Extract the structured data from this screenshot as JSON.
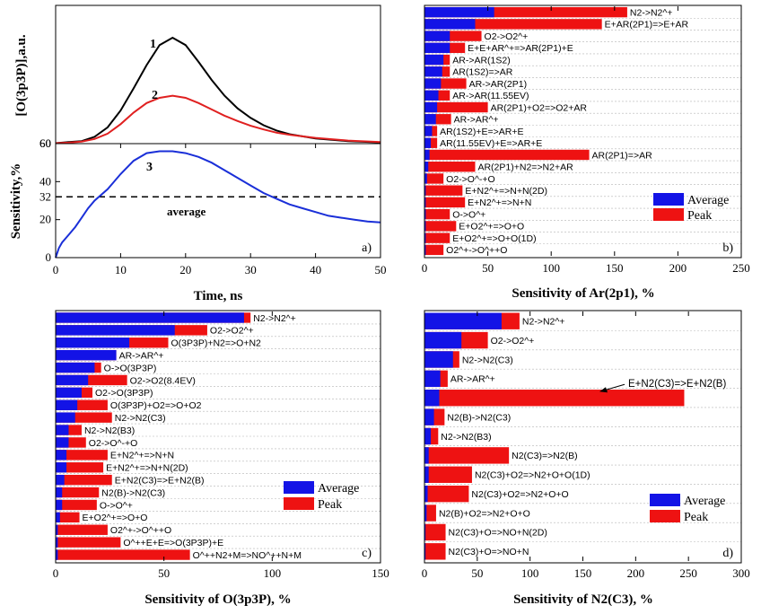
{
  "colors": {
    "average": "#1313e6",
    "peak": "#ee1212",
    "curve1": "#000000",
    "curve2": "#e02020",
    "curve3": "#1a2fd8"
  },
  "legend": {
    "average": "Average",
    "peak": "Peak"
  },
  "chart_data": [
    {
      "id": "a",
      "type": "line",
      "panel_label": "a)",
      "xlabel": "Time, ns",
      "xlim": [
        0,
        50
      ],
      "xticks": [
        "0",
        "10",
        "20",
        "30",
        "40",
        "50"
      ],
      "top": {
        "ylabel": "[O(3p3P)],a.u.",
        "yticks": [
          "60"
        ],
        "series": [
          {
            "name": "1",
            "color_key": "curve1",
            "x": [
              0,
              2,
              4,
              6,
              8,
              10,
              12,
              14,
              16,
              18,
              20,
              22,
              24,
              26,
              28,
              30,
              32,
              34,
              36,
              40,
              45,
              50
            ],
            "y": [
              0.0,
              0.01,
              0.02,
              0.06,
              0.15,
              0.31,
              0.52,
              0.74,
              0.93,
              1.0,
              0.93,
              0.77,
              0.6,
              0.45,
              0.33,
              0.24,
              0.17,
              0.12,
              0.085,
              0.045,
              0.02,
              0.008
            ]
          },
          {
            "name": "2",
            "color_key": "curve2",
            "x": [
              0,
              2,
              4,
              6,
              8,
              10,
              12,
              14,
              16,
              18,
              20,
              22,
              24,
              26,
              28,
              30,
              32,
              34,
              36,
              40,
              45,
              50
            ],
            "y": [
              0.0,
              0.005,
              0.015,
              0.04,
              0.09,
              0.18,
              0.29,
              0.38,
              0.43,
              0.45,
              0.43,
              0.38,
              0.32,
              0.26,
              0.21,
              0.165,
              0.13,
              0.1,
              0.08,
              0.05,
              0.025,
              0.01
            ]
          }
        ]
      },
      "bottom": {
        "ylabel": "Sensitivity,%",
        "ylim": [
          0,
          60
        ],
        "yticks": [
          "0",
          "20",
          "32",
          "40",
          "60"
        ],
        "average_level": 32,
        "average_label": "average",
        "series": [
          {
            "name": "3",
            "color_key": "curve3",
            "x": [
              0,
              0.5,
              1,
              2,
              3,
              4,
              5,
              6,
              8,
              10,
              12,
              14,
              16,
              18,
              20,
              22,
              24,
              26,
              28,
              30,
              32,
              34,
              36,
              38,
              40,
              42,
              44,
              46,
              48,
              50
            ],
            "y": [
              0,
              5,
              8,
              12,
              16,
              21,
              26,
              30,
              36,
              44,
              51,
              55,
              56,
              56,
              55,
              53,
              50,
              46,
              42,
              38,
              34,
              31,
              28,
              26,
              24,
              22,
              21,
              20,
              19,
              18.5
            ]
          }
        ]
      }
    },
    {
      "id": "b",
      "type": "bar",
      "orientation": "horizontal",
      "panel_label": "b)",
      "xlabel": "Sensitivity of Ar(2p1), %",
      "xlim": [
        0,
        250
      ],
      "xticks": [
        "0",
        "50",
        "100",
        "150",
        "200",
        "250"
      ],
      "series_names": [
        "Average",
        "Peak"
      ],
      "reactions": [
        "N2->N2^+",
        "E+AR(2P1)=>E+AR",
        "O2->O2^+",
        "E+E+AR^+=>AR(2P1)+E",
        "AR->AR(1S2)",
        "AR(1S2)=>AR",
        "AR->AR(2P1)",
        "AR->AR(11.55EV)",
        "AR(2P1)+O2=>O2+AR",
        "AR->AR^+",
        "AR(1S2)+E=>AR+E",
        "AR(11.55EV)+E=>AR+E",
        "AR(2P1)=>AR",
        "AR(2P1)+N2=>N2+AR",
        "O2->O^-+O",
        "E+N2^+=>N+N(2D)",
        "E+N2^+=>N+N",
        "O->O^+",
        "E+O2^+=>O+O",
        "E+O2^+=>O+O(1D)",
        "O2^+->O^++O"
      ],
      "average": [
        55,
        40,
        20,
        20,
        15,
        14,
        13,
        11,
        10,
        9,
        6,
        5,
        4,
        3,
        2,
        1,
        1,
        1,
        1,
        1,
        1
      ],
      "peak": [
        160,
        140,
        45,
        32,
        20,
        20,
        33,
        20,
        50,
        21,
        10,
        10,
        130,
        40,
        15,
        30,
        32,
        20,
        25,
        20,
        15
      ]
    },
    {
      "id": "c",
      "type": "bar",
      "orientation": "horizontal",
      "panel_label": "c)",
      "xlabel": "Sensitivity of O(3p3P), %",
      "xlim": [
        0,
        150
      ],
      "xticks": [
        "0",
        "50",
        "100",
        "150"
      ],
      "series_names": [
        "Average",
        "Peak"
      ],
      "reactions": [
        "N2->N2^+",
        "O2->O2^+",
        "O(3P3P)+N2=>O+N2",
        "AR->AR^+",
        "O->O(3P3P)",
        "O2->O2(8.4EV)",
        "O2->O(3P3P)",
        "O(3P3P)+O2=>O+O2",
        "N2->N2(C3)",
        "N2->N2(B3)",
        "O2->O^-+O",
        "E+N2^+=>N+N",
        "E+N2^+=>N+N(2D)",
        "E+N2(C3)=>E+N2(B)",
        "N2(B)->N2(C3)",
        "O->O^+",
        "E+O2^+=>O+O",
        "O2^+->O^++O",
        "O^++E+E=>O(3P3P)+E",
        "O^++N2+M=>NO^++N+M"
      ],
      "average": [
        87,
        55,
        34,
        28,
        18,
        15,
        12,
        10,
        9,
        6,
        6,
        5,
        5,
        4,
        3,
        3,
        2,
        1,
        1,
        1
      ],
      "peak": [
        90,
        70,
        52,
        28,
        21,
        33,
        17,
        24,
        26,
        12,
        14,
        24,
        22,
        26,
        20,
        19,
        11,
        24,
        30,
        62
      ]
    },
    {
      "id": "d",
      "type": "bar",
      "orientation": "horizontal",
      "panel_label": "d)",
      "xlabel": "Sensitivity of N2(C3), %",
      "xlim": [
        0,
        300
      ],
      "xticks": [
        "0",
        "50",
        "100",
        "150",
        "200",
        "250",
        "300"
      ],
      "series_names": [
        "Average",
        "Peak"
      ],
      "reactions": [
        "N2->N2^+",
        "O2->O2^+",
        "N2->N2(C3)",
        "AR->AR^+",
        "E+N2(C3)=>E+N2(B)",
        "N2(B)->N2(C3)",
        "N2->N2(B3)",
        "N2(C3)=>N2(B)",
        "N2(C3)+O2=>N2+O+O(1D)",
        "N2(C3)+O2=>N2+O+O",
        "N2(B)+O2=>N2+O+O",
        "N2(C3)+O=>NO+N(2D)",
        "N2(C3)+O=>NO+N"
      ],
      "average": [
        73,
        35,
        27,
        15,
        14,
        9,
        6,
        4,
        4,
        3,
        2,
        1,
        1
      ],
      "peak": [
        90,
        60,
        33,
        22,
        246,
        19,
        13,
        80,
        45,
        42,
        11,
        20,
        20
      ],
      "annotation": {
        "target": "E+N2(C3)=>E+N2(B)",
        "text": "E+N2(C3)=>E+N2(B)"
      }
    }
  ]
}
